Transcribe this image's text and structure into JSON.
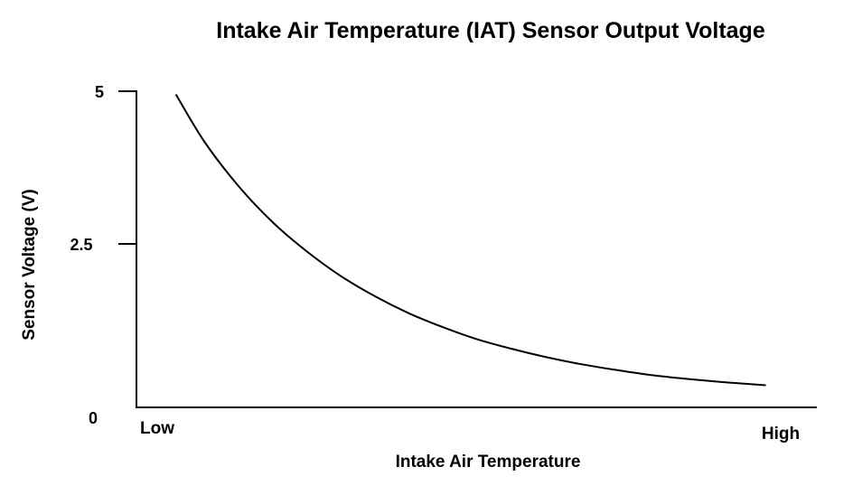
{
  "chart_data": {
    "type": "line",
    "title": "Intake Air Temperature (IAT) Sensor Output Voltage",
    "xlabel": "Intake Air Temperature",
    "ylabel": "Sensor Voltage (V)",
    "x_tick_labels": [
      "Low",
      "High"
    ],
    "y_ticks": [
      {
        "value": 5,
        "label": "5"
      },
      {
        "value": 2.5,
        "label": "2.5"
      },
      {
        "value": 0,
        "label": "0"
      }
    ],
    "ylim": [
      0,
      5
    ],
    "xlim": [
      0,
      1
    ],
    "grid": false,
    "series": [
      {
        "x": [
          0.058,
          0.1,
          0.15,
          0.2,
          0.25,
          0.3,
          0.35,
          0.4,
          0.45,
          0.5,
          0.55,
          0.6,
          0.65,
          0.7,
          0.75,
          0.8,
          0.85,
          0.9,
          0.925
        ],
        "y": [
          4.95,
          4.2,
          3.5,
          2.93,
          2.47,
          2.08,
          1.76,
          1.49,
          1.27,
          1.08,
          0.93,
          0.8,
          0.69,
          0.6,
          0.52,
          0.46,
          0.41,
          0.37,
          0.35
        ]
      }
    ],
    "colors": {
      "line": "#000000",
      "axis": "#000000",
      "background": "#ffffff"
    }
  }
}
